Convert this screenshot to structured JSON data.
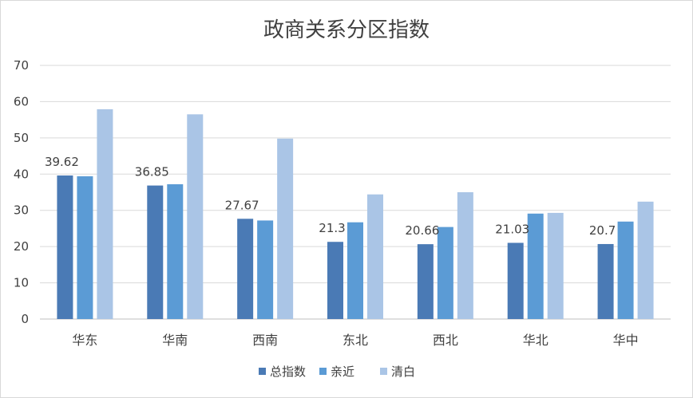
{
  "chart_data": {
    "type": "bar",
    "title": "政商关系分区指数",
    "categories": [
      "华东",
      "华南",
      "西南",
      "东北",
      "西北",
      "华北",
      "华中"
    ],
    "series": [
      {
        "name": "总指数",
        "color": "#4a7ab5",
        "values": [
          39.62,
          36.85,
          27.67,
          21.3,
          20.66,
          21.03,
          20.7
        ]
      },
      {
        "name": "亲近",
        "color": "#5b9bd5",
        "values": [
          39.4,
          37.2,
          27.2,
          26.7,
          25.4,
          29.1,
          26.9
        ]
      },
      {
        "name": "清白",
        "color": "#aac5e6",
        "values": [
          57.9,
          56.5,
          49.8,
          34.4,
          35.0,
          29.3,
          32.4
        ]
      }
    ],
    "data_labels": {
      "series": "总指数",
      "texts": [
        "39.62",
        "36.85",
        "27.67",
        "21.3",
        "20.66",
        "21.03",
        "20.7"
      ]
    },
    "ylim": [
      0,
      70
    ],
    "yticks": [
      0,
      10,
      20,
      30,
      40,
      50,
      60,
      70
    ],
    "grid": true,
    "legend_position": "bottom"
  }
}
